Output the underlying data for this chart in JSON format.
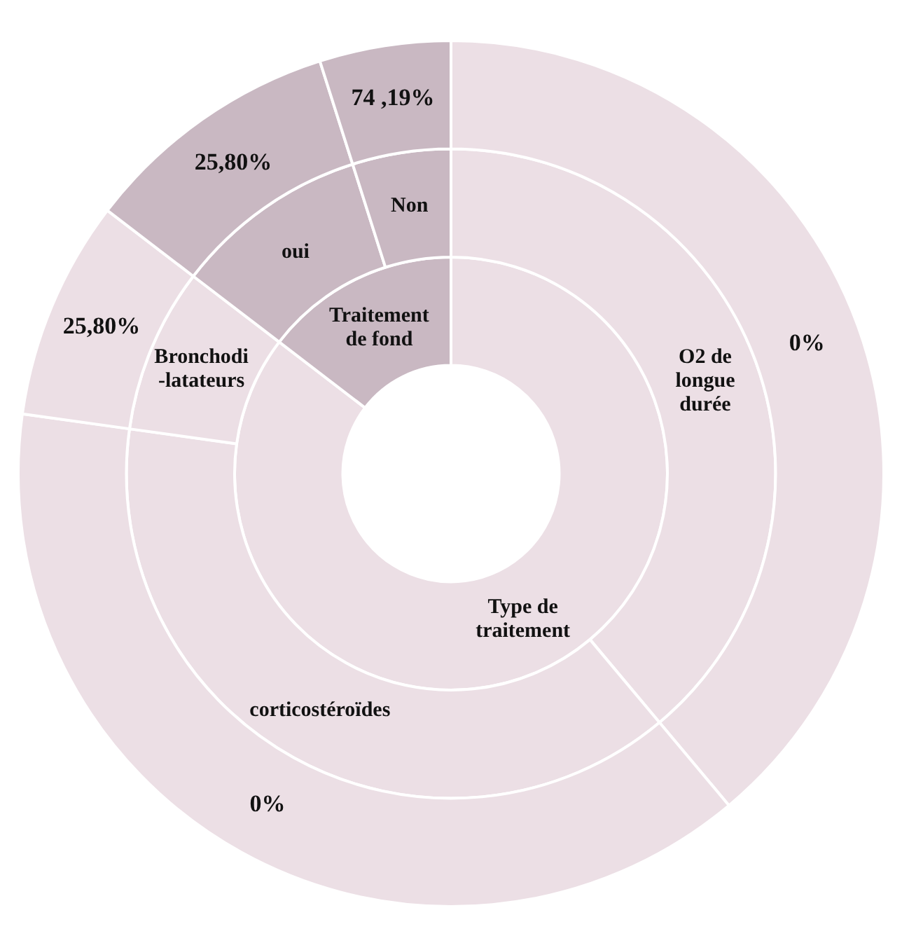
{
  "chart_data": {
    "type": "donut",
    "legend": false,
    "annotations": [
      "0%",
      "0%",
      "25,80%",
      "25,80%",
      "74 ,19%"
    ],
    "series": [
      {
        "values": [
          85.4,
          14.6
        ],
        "value_labels": [
          "Type de\ntraitement",
          "Traitement\nde fond"
        ],
        "colors": [
          "#ecdfe5",
          "#c9b8c2"
        ]
      },
      {
        "values": [
          38.9,
          38.3,
          8.2,
          9.7,
          4.9
        ],
        "value_labels": [
          "O2 de\nlongue\ndurée",
          "corticostéroïdes",
          "Bronchodi\n-latateurs",
          "oui",
          "Non"
        ],
        "colors": [
          "#ecdfe5",
          "#ecdfe5",
          "#ecdfe5",
          "#c9b8c2",
          "#c9b8c2"
        ]
      },
      {
        "values": [
          38.9,
          38.3,
          8.2,
          9.7,
          4.9
        ],
        "colors": [
          "#ecdfe5",
          "#ecdfe5",
          "#ecdfe5",
          "#c9b8c2",
          "#c9b8c2"
        ]
      }
    ]
  }
}
